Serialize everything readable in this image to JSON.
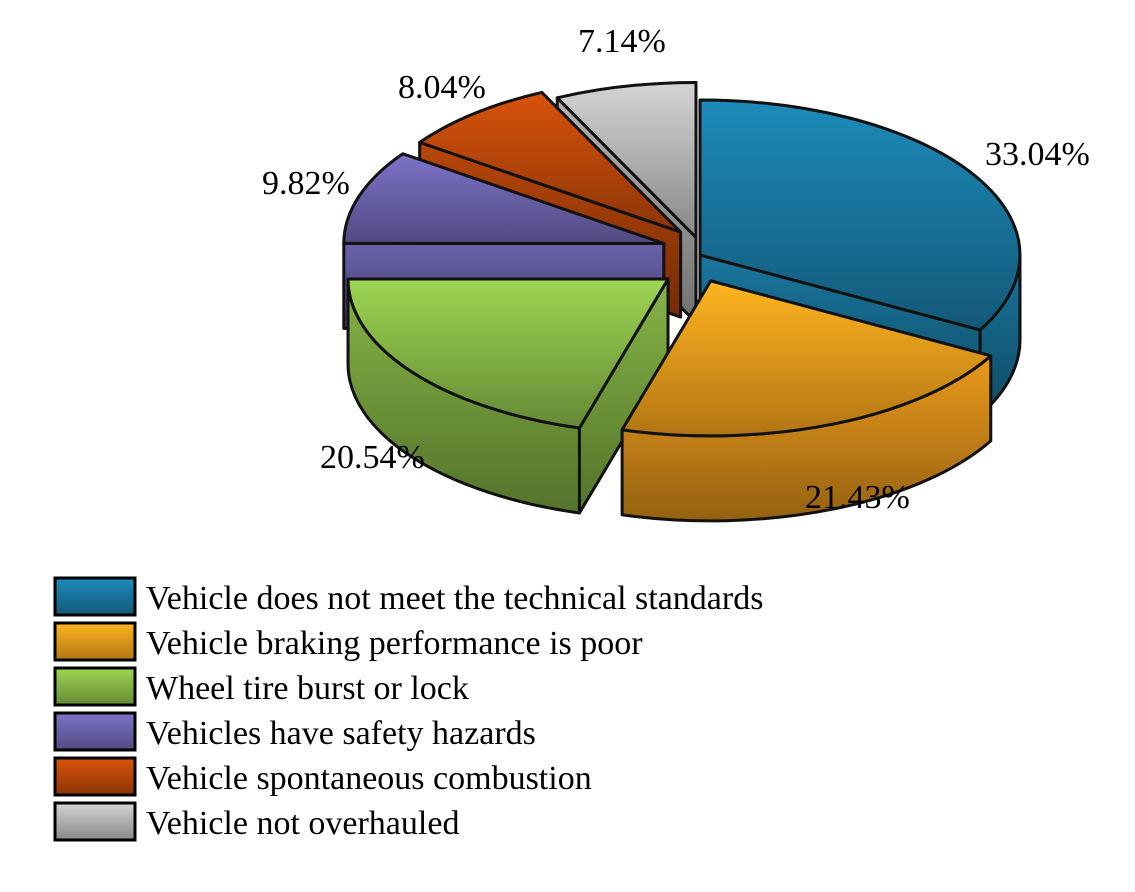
{
  "chart_data": {
    "type": "pie",
    "style": "3d-exploded",
    "legend_position": "bottom",
    "slices": [
      {
        "label": "Vehicle does not meet the technical standards",
        "value": 33.04,
        "value_label": "33.04%",
        "color": "#1a7ca6"
      },
      {
        "label": "Vehicle braking performance is poor",
        "value": 21.43,
        "value_label": "21.43%",
        "color": "#f7a21c"
      },
      {
        "label": "Wheel tire burst or lock",
        "value": 20.54,
        "value_label": "20.54%",
        "color": "#8cbf4a"
      },
      {
        "label": "Vehicles have safety hazards",
        "value": 9.82,
        "value_label": "9.82%",
        "color": "#7067b3"
      },
      {
        "label": "Vehicle spontaneous combustion",
        "value": 8.04,
        "value_label": "8.04%",
        "color": "#c24a0a"
      },
      {
        "label": "Vehicle not overhauled",
        "value": 7.14,
        "value_label": "7.14%",
        "color": "#bdbdbd"
      }
    ]
  }
}
